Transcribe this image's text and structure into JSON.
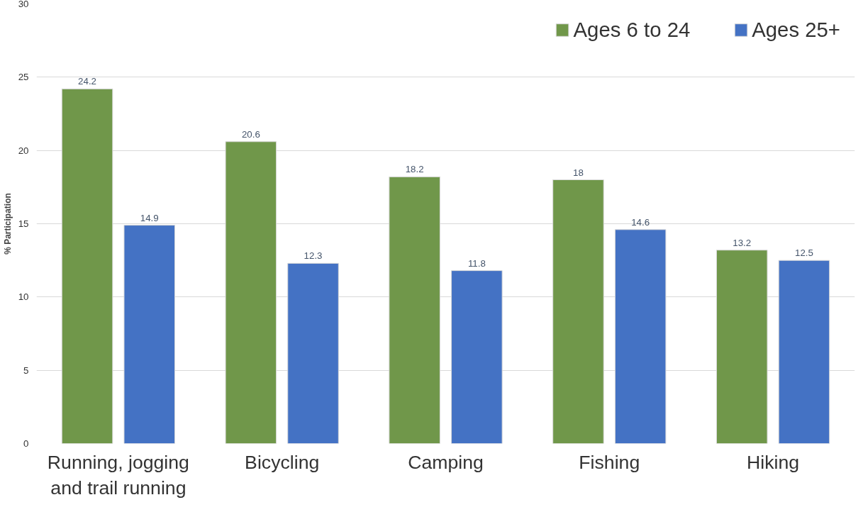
{
  "chart_data": {
    "type": "bar",
    "ylabel": "% Participation",
    "categories": [
      "Running, jogging and trail running",
      "Bicycling",
      "Camping",
      "Fishing",
      "Hiking"
    ],
    "series": [
      {
        "name": "Ages 6 to 24",
        "color": "#70974a",
        "values": [
          24.2,
          20.6,
          18.2,
          18,
          13.2
        ]
      },
      {
        "name": "Ages 25+",
        "color": "#4472c4",
        "values": [
          14.9,
          12.3,
          11.8,
          14.6,
          12.5
        ]
      }
    ],
    "ylim": [
      0,
      30
    ],
    "yticks": [
      0,
      5,
      10,
      15,
      20,
      25,
      30
    ],
    "grid": "y",
    "legend": "top right",
    "data_labels": true
  }
}
